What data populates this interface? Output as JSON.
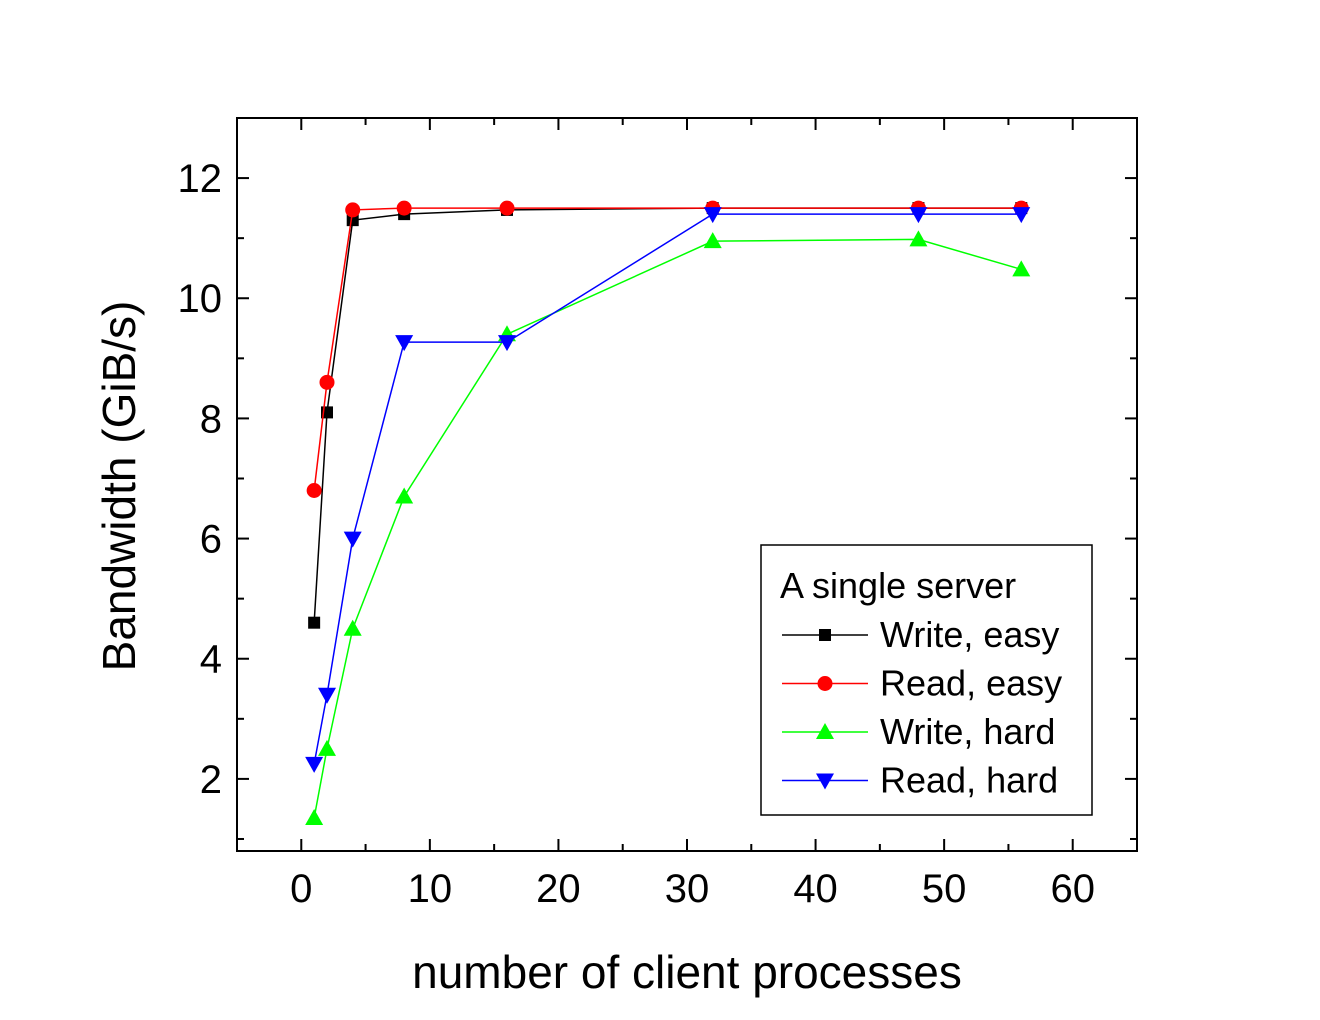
{
  "chart_data": {
    "type": "line",
    "title": "",
    "xlabel": "number of client processes",
    "ylabel": "Bandwidth (GiB/s)",
    "xlim": [
      -5,
      65
    ],
    "ylim": [
      0.8,
      13
    ],
    "x_ticks": [
      "0",
      "10",
      "20",
      "30",
      "40",
      "50",
      "60"
    ],
    "y_ticks": [
      "2",
      "4",
      "6",
      "8",
      "10",
      "12"
    ],
    "grid": false,
    "legend_title": "A single server",
    "legend_position": "bottom-right",
    "series": [
      {
        "name": "Write, easy",
        "color": "#000000",
        "marker": "square",
        "x": [
          1,
          2,
          4,
          8,
          16,
          32,
          48,
          56
        ],
        "y": [
          4.6,
          8.1,
          11.3,
          11.4,
          11.47,
          11.5,
          11.5,
          11.5
        ]
      },
      {
        "name": "Read, easy",
        "color": "#ff0000",
        "marker": "circle",
        "x": [
          1,
          2,
          4,
          8,
          16,
          32,
          48,
          56
        ],
        "y": [
          6.8,
          8.6,
          11.47,
          11.5,
          11.5,
          11.5,
          11.5,
          11.5
        ]
      },
      {
        "name": "Write, hard",
        "color": "#00ff00",
        "marker": "triangle-up",
        "x": [
          1,
          2,
          4,
          8,
          16,
          32,
          48,
          56
        ],
        "y": [
          1.35,
          2.5,
          4.5,
          6.7,
          9.4,
          10.95,
          10.98,
          10.48
        ]
      },
      {
        "name": "Read, hard",
        "color": "#0000ff",
        "marker": "triangle-down",
        "x": [
          1,
          2,
          4,
          8,
          16,
          32,
          48,
          56
        ],
        "y": [
          2.25,
          3.4,
          6.0,
          9.27,
          9.27,
          11.4,
          11.4,
          11.4
        ]
      }
    ]
  }
}
